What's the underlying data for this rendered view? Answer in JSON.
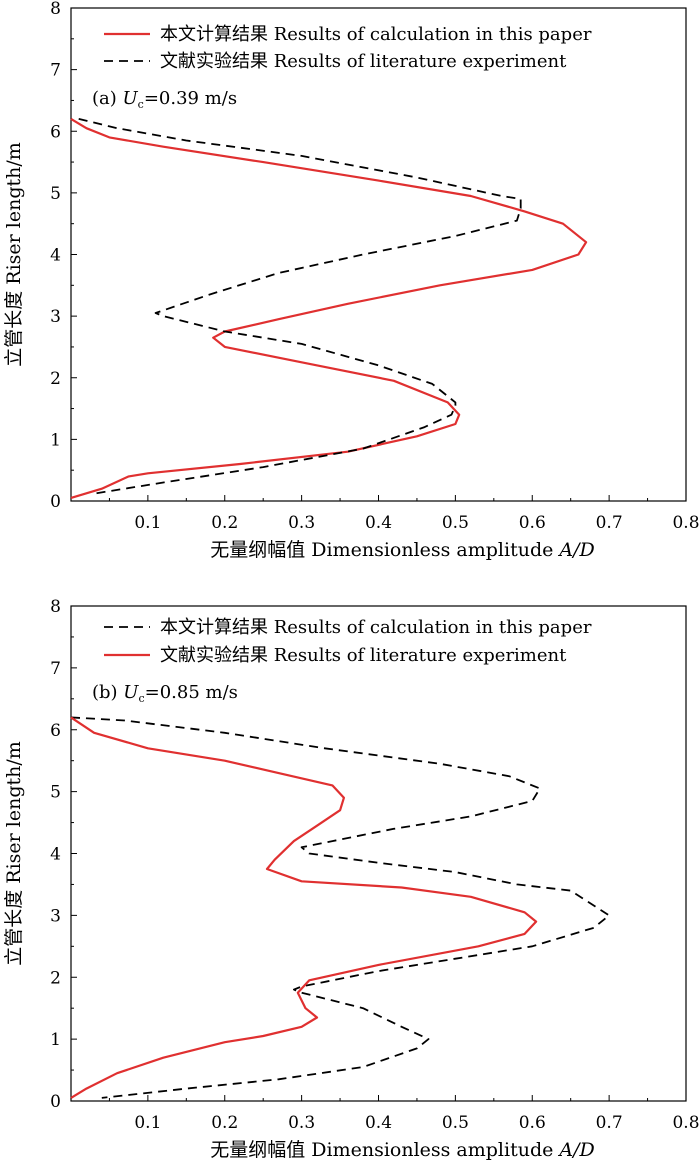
{
  "chart_data": [
    {
      "type": "line",
      "panel_label": "(a)",
      "annotation": {
        "prefix": "(a) ",
        "var": "U",
        "sub": "c",
        "value": "=0.39 m/s"
      },
      "xlabel": {
        "text": "无量纲幅值 Dimensionless amplitude ",
        "italic": "A/D"
      },
      "ylabel": "立管长度 Riser length/m",
      "xlim": [
        0,
        0.8
      ],
      "ylim": [
        0,
        8
      ],
      "xticks": [
        "0.1",
        "0.2",
        "0.3",
        "0.4",
        "0.5",
        "0.6",
        "0.7",
        "0.8"
      ],
      "yticks": [
        "0",
        "1",
        "2",
        "3",
        "4",
        "5",
        "6",
        "7",
        "8"
      ],
      "legend_position": "top",
      "series": [
        {
          "name": "本文计算结果 Results of calculation in this paper",
          "style": "solid",
          "color": "#e03030",
          "points": [
            [
              0.0,
              6.2
            ],
            [
              0.02,
              6.05
            ],
            [
              0.05,
              5.9
            ],
            [
              0.12,
              5.75
            ],
            [
              0.25,
              5.5
            ],
            [
              0.4,
              5.2
            ],
            [
              0.52,
              4.95
            ],
            [
              0.59,
              4.7
            ],
            [
              0.64,
              4.5
            ],
            [
              0.67,
              4.2
            ],
            [
              0.66,
              4.0
            ],
            [
              0.6,
              3.75
            ],
            [
              0.48,
              3.5
            ],
            [
              0.36,
              3.2
            ],
            [
              0.27,
              2.95
            ],
            [
              0.2,
              2.75
            ],
            [
              0.185,
              2.65
            ],
            [
              0.2,
              2.5
            ],
            [
              0.3,
              2.25
            ],
            [
              0.42,
              1.95
            ],
            [
              0.49,
              1.6
            ],
            [
              0.505,
              1.4
            ],
            [
              0.5,
              1.25
            ],
            [
              0.45,
              1.05
            ],
            [
              0.36,
              0.8
            ],
            [
              0.22,
              0.6
            ],
            [
              0.1,
              0.45
            ],
            [
              0.075,
              0.4
            ],
            [
              0.04,
              0.2
            ],
            [
              0.0,
              0.05
            ]
          ]
        },
        {
          "name": "文献实验结果 Results of literature experiment",
          "style": "dashed",
          "color": "#000000",
          "points": [
            [
              0.01,
              6.2
            ],
            [
              0.06,
              6.05
            ],
            [
              0.15,
              5.85
            ],
            [
              0.3,
              5.6
            ],
            [
              0.45,
              5.25
            ],
            [
              0.56,
              4.95
            ],
            [
              0.585,
              4.9
            ],
            [
              0.585,
              4.75
            ],
            [
              0.58,
              4.55
            ],
            [
              0.5,
              4.3
            ],
            [
              0.38,
              4.0
            ],
            [
              0.27,
              3.7
            ],
            [
              0.18,
              3.35
            ],
            [
              0.11,
              3.05
            ],
            [
              0.12,
              3.0
            ],
            [
              0.2,
              2.75
            ],
            [
              0.3,
              2.55
            ],
            [
              0.4,
              2.2
            ],
            [
              0.47,
              1.9
            ],
            [
              0.5,
              1.6
            ],
            [
              0.5,
              1.55
            ],
            [
              0.495,
              1.4
            ],
            [
              0.46,
              1.2
            ],
            [
              0.38,
              0.85
            ],
            [
              0.25,
              0.55
            ],
            [
              0.12,
              0.3
            ],
            [
              0.03,
              0.12
            ]
          ]
        }
      ]
    },
    {
      "type": "line",
      "panel_label": "(b)",
      "annotation": {
        "prefix": "(b) ",
        "var": "U",
        "sub": "c",
        "value": "=0.85 m/s"
      },
      "xlabel": {
        "text": "无量纲幅值 Dimensionless amplitude ",
        "italic": "A/D"
      },
      "ylabel": "立管长度 Riser length/m",
      "xlim": [
        0,
        0.8
      ],
      "ylim": [
        0,
        8
      ],
      "xticks": [
        "0.1",
        "0.2",
        "0.3",
        "0.4",
        "0.5",
        "0.6",
        "0.7",
        "0.8"
      ],
      "yticks": [
        "0",
        "1",
        "2",
        "3",
        "4",
        "5",
        "6",
        "7",
        "8"
      ],
      "legend_position": "top",
      "series": [
        {
          "name": "本文计算结果 Results of calculation in this paper",
          "style": "dashed",
          "color": "#000000",
          "points": [
            [
              0.0,
              6.2
            ],
            [
              0.07,
              6.15
            ],
            [
              0.2,
              5.95
            ],
            [
              0.33,
              5.7
            ],
            [
              0.48,
              5.45
            ],
            [
              0.57,
              5.25
            ],
            [
              0.61,
              5.05
            ],
            [
              0.6,
              4.85
            ],
            [
              0.52,
              4.6
            ],
            [
              0.42,
              4.4
            ],
            [
              0.34,
              4.2
            ],
            [
              0.3,
              4.1
            ],
            [
              0.31,
              4.0
            ],
            [
              0.4,
              3.85
            ],
            [
              0.5,
              3.7
            ],
            [
              0.58,
              3.5
            ],
            [
              0.65,
              3.4
            ],
            [
              0.7,
              3.0
            ],
            [
              0.68,
              2.8
            ],
            [
              0.6,
              2.5
            ],
            [
              0.5,
              2.3
            ],
            [
              0.4,
              2.1
            ],
            [
              0.3,
              1.85
            ],
            [
              0.29,
              1.8
            ],
            [
              0.3,
              1.75
            ],
            [
              0.38,
              1.5
            ],
            [
              0.43,
              1.2
            ],
            [
              0.465,
              1.0
            ],
            [
              0.45,
              0.85
            ],
            [
              0.38,
              0.55
            ],
            [
              0.27,
              0.35
            ],
            [
              0.15,
              0.2
            ],
            [
              0.04,
              0.05
            ]
          ]
        },
        {
          "name": "文献实验结果 Results of literature experiment",
          "style": "solid",
          "color": "#e03030",
          "points": [
            [
              0.0,
              6.2
            ],
            [
              0.03,
              5.95
            ],
            [
              0.1,
              5.7
            ],
            [
              0.2,
              5.5
            ],
            [
              0.27,
              5.3
            ],
            [
              0.34,
              5.1
            ],
            [
              0.355,
              4.9
            ],
            [
              0.35,
              4.7
            ],
            [
              0.32,
              4.45
            ],
            [
              0.29,
              4.2
            ],
            [
              0.265,
              3.9
            ],
            [
              0.255,
              3.75
            ],
            [
              0.3,
              3.55
            ],
            [
              0.43,
              3.45
            ],
            [
              0.52,
              3.3
            ],
            [
              0.59,
              3.05
            ],
            [
              0.605,
              2.9
            ],
            [
              0.59,
              2.7
            ],
            [
              0.53,
              2.5
            ],
            [
              0.4,
              2.2
            ],
            [
              0.31,
              1.95
            ],
            [
              0.295,
              1.75
            ],
            [
              0.305,
              1.5
            ],
            [
              0.32,
              1.35
            ],
            [
              0.3,
              1.2
            ],
            [
              0.25,
              1.05
            ],
            [
              0.2,
              0.95
            ],
            [
              0.12,
              0.7
            ],
            [
              0.06,
              0.45
            ],
            [
              0.02,
              0.2
            ],
            [
              0.0,
              0.05
            ]
          ]
        }
      ]
    }
  ]
}
